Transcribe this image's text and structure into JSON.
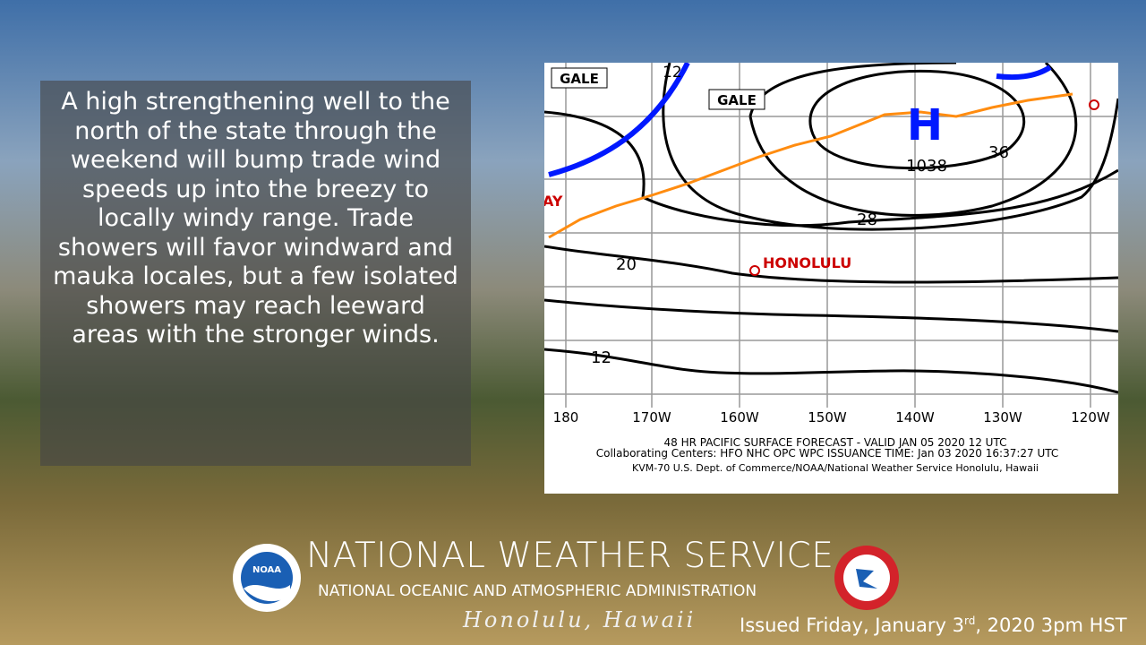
{
  "slide": {
    "summary": "A high strengthening well to the north of the state through the weekend will bump trade wind speeds up into the breezy to locally windy range. Trade showers will favor windward and mauka locales, but a few isolated showers may reach leeward areas with the stronger winds."
  },
  "map": {
    "front_labels": [
      "GALE",
      "GALE"
    ],
    "isobar_labels": [
      "12",
      "36",
      "28",
      "20",
      "12"
    ],
    "high": {
      "symbol": "H",
      "pressure": "1038"
    },
    "places": [
      "HONOLULU",
      "AY"
    ],
    "longitudes": [
      "180",
      "170W",
      "160W",
      "150W",
      "140W",
      "130W",
      "120W"
    ],
    "caption": [
      "48 HR PACIFIC SURFACE FORECAST - VALID JAN 05 2020 12 UTC",
      "Collaborating Centers:  HFO NHC OPC WPC     ISSUANCE TIME:  Jan 03 2020 16:37:27 UTC",
      "KVM-70 U.S. Dept. of Commerce/NOAA/National Weather Service Honolulu, Hawaii"
    ]
  },
  "footer": {
    "agency": "NATIONAL WEATHER SERVICE",
    "parent": "NATIONAL OCEANIC AND ATMOSPHERIC ADMINISTRATION",
    "office": "Honolulu, Hawaii",
    "logo": "NOAA",
    "issued": {
      "before": "Issued Friday, January 3",
      "ordinal": "rd",
      "after": ", 2020 3pm HST"
    }
  }
}
